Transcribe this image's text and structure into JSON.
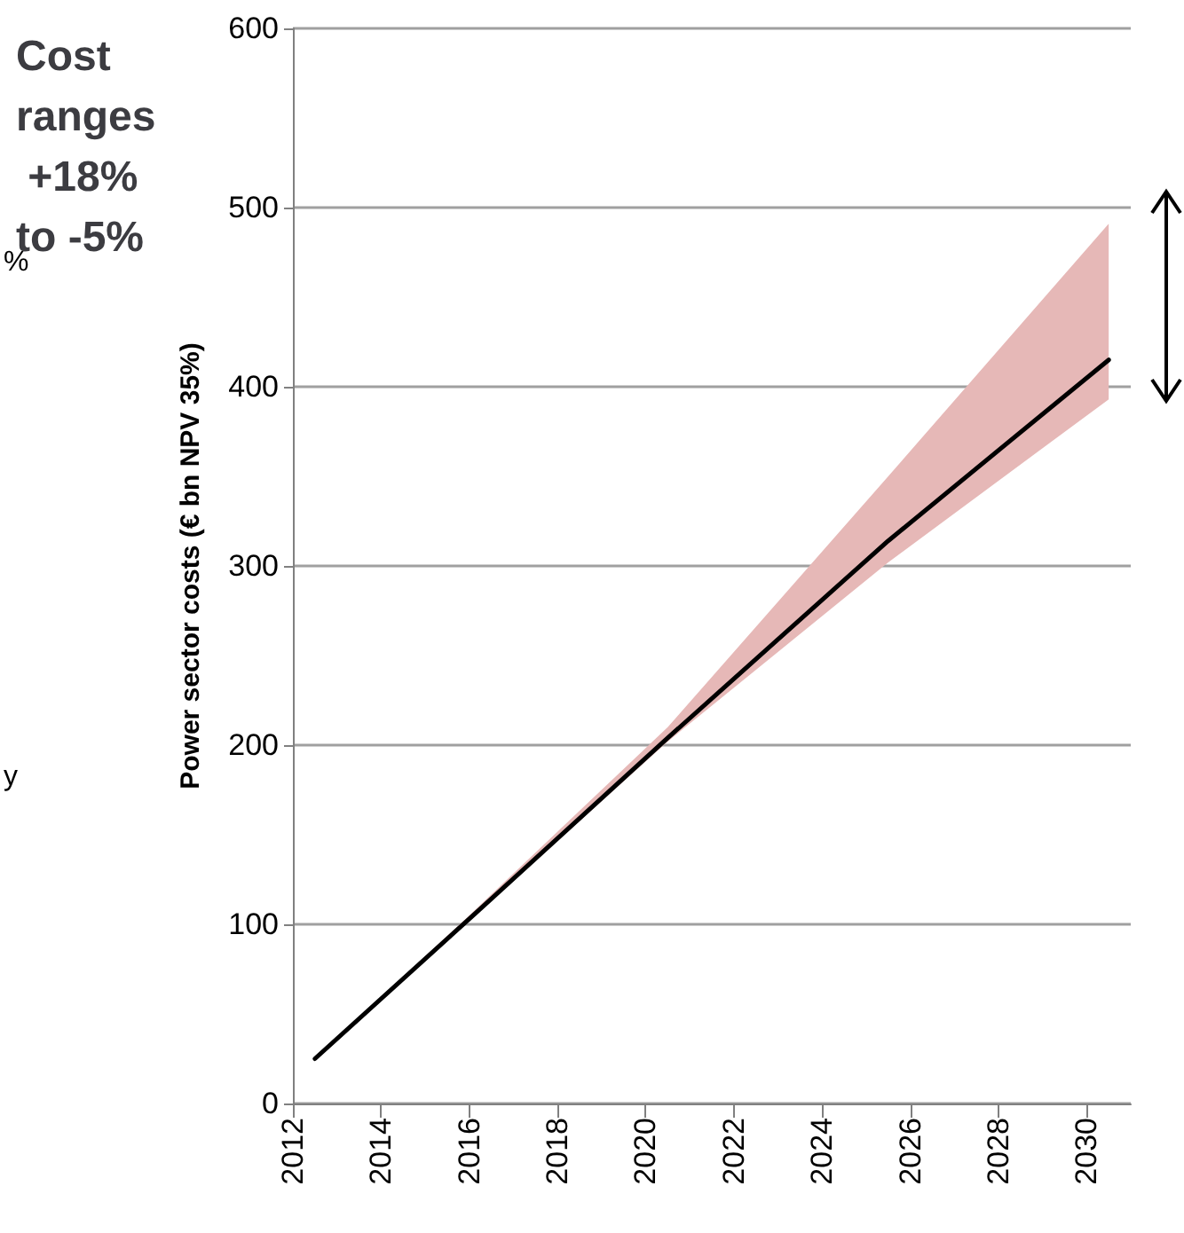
{
  "chart_data": {
    "type": "line",
    "title": "Cost ranges +18% to -5%",
    "ylabel": "Power sector costs (€ bn NPV 35%)",
    "annotations": [
      "%",
      "y"
    ],
    "x": [
      2012.5,
      2016,
      2020.5,
      2025.5,
      2030.5
    ],
    "series": [
      {
        "color": "#000000",
        "values": [
          25,
          103,
          204,
          314,
          415
        ],
        "lower": [
          25,
          102,
          202,
          302,
          393
        ],
        "upper": [
          25,
          105,
          210,
          350,
          491
        ]
      }
    ],
    "xlim": [
      2012,
      2031
    ],
    "xticks": [
      2012,
      2014,
      2016,
      2018,
      2020,
      2022,
      2024,
      2026,
      2028,
      2030
    ],
    "ylim": [
      0,
      600
    ],
    "yticks": [
      0,
      100,
      200,
      300,
      400,
      500,
      600
    ],
    "grid": "y",
    "marker": "none",
    "line_style": "solid"
  }
}
